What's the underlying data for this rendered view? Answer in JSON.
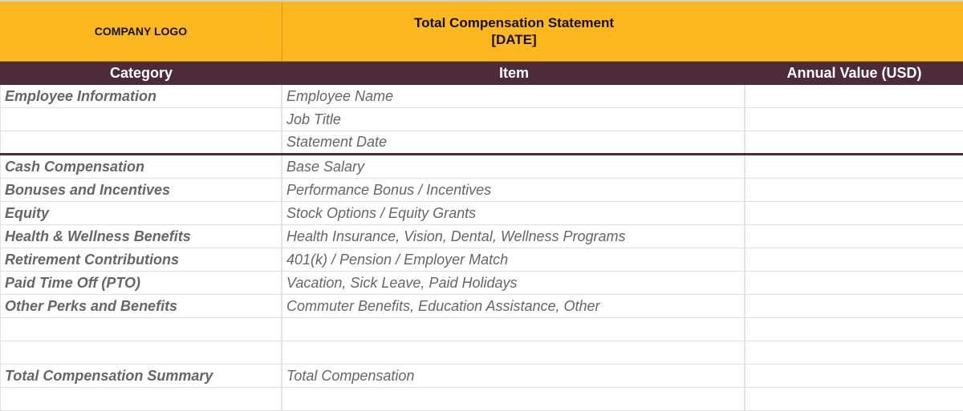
{
  "banner": {
    "logo_label": "COMPANY LOGO",
    "title_line1": "Total Compensation Statement",
    "title_line2": "[DATE]"
  },
  "columns": {
    "category": "Category",
    "item": "Item",
    "annual_value": "Annual Value (USD)"
  },
  "rows": [
    {
      "category": "Employee Information",
      "item": "Employee Name",
      "value": ""
    },
    {
      "category": "",
      "item": "Job Title",
      "value": ""
    },
    {
      "category": "",
      "item": "Statement Date",
      "value": ""
    },
    {
      "category": "Cash Compensation",
      "item": "Base Salary",
      "value": ""
    },
    {
      "category": "Bonuses and Incentives",
      "item": "Performance Bonus / Incentives",
      "value": ""
    },
    {
      "category": "Equity",
      "item": "Stock Options / Equity Grants",
      "value": ""
    },
    {
      "category": "Health & Wellness Benefits",
      "item": "Health Insurance, Vision, Dental, Wellness Programs",
      "value": ""
    },
    {
      "category": "Retirement Contributions",
      "item": "401(k) / Pension / Employer Match",
      "value": ""
    },
    {
      "category": "Paid Time Off (PTO)",
      "item": "Vacation, Sick Leave, Paid Holidays",
      "value": ""
    },
    {
      "category": "Other Perks and Benefits",
      "item": "Commuter Benefits, Education Assistance, Other",
      "value": ""
    },
    {
      "category": "",
      "item": "",
      "value": ""
    },
    {
      "category": "",
      "item": "",
      "value": ""
    },
    {
      "category": "Total Compensation Summary",
      "item": "Total Compensation",
      "value": ""
    },
    {
      "category": "",
      "item": "",
      "value": ""
    }
  ],
  "colors": {
    "banner": "#fdb71f",
    "header_bar": "#4e2b3a",
    "category_text": "#666666"
  }
}
